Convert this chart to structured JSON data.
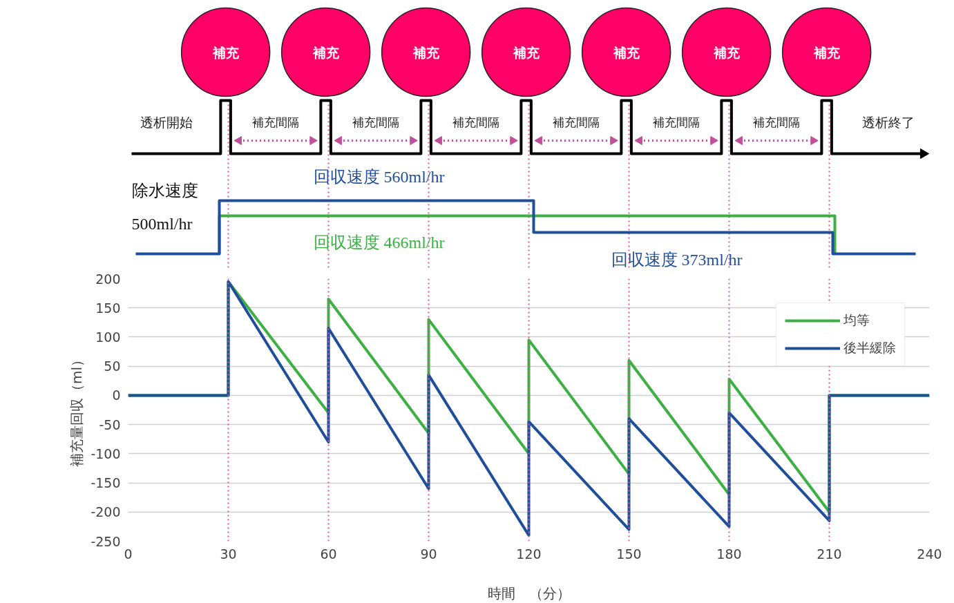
{
  "chart_data": {
    "type": "line",
    "xlabel": "時間　（分）",
    "ylabel": "補充量回収（ml）",
    "x": [
      0,
      30,
      30,
      60,
      60,
      90,
      90,
      120,
      120,
      150,
      150,
      180,
      180,
      210,
      210,
      240
    ],
    "series": [
      {
        "name": "均等",
        "color": "#3cb043",
        "values": [
          0,
          0,
          195,
          -30,
          165,
          -65,
          130,
          -100,
          95,
          -135,
          60,
          -170,
          28,
          -200,
          0,
          0
        ]
      },
      {
        "name": "後半緩除",
        "color": "#1f4e9a",
        "values": [
          0,
          0,
          195,
          -80,
          115,
          -160,
          35,
          -240,
          -45,
          -230,
          -40,
          -225,
          -30,
          -215,
          0,
          0
        ]
      }
    ],
    "xlim": [
      0,
      240
    ],
    "xticks": [
      0,
      30,
      60,
      90,
      120,
      150,
      180,
      210,
      240
    ],
    "ylim": [
      -250,
      200
    ],
    "yticks": [
      -250,
      -200,
      -150,
      -100,
      -50,
      0,
      50,
      100,
      150,
      200
    ],
    "grid": "y",
    "legend": "top right",
    "line_style": "solid",
    "marker": "none",
    "ref_lines": [
      {
        "axis": "x",
        "value": 30,
        "color": "#d9579c",
        "line_style": "dotted"
      },
      {
        "axis": "x",
        "value": 60,
        "color": "#d9579c",
        "line_style": "dotted"
      },
      {
        "axis": "x",
        "value": 90,
        "color": "#d9579c",
        "line_style": "dotted"
      },
      {
        "axis": "x",
        "value": 120,
        "color": "#d9579c",
        "line_style": "dotted"
      },
      {
        "axis": "x",
        "value": 150,
        "color": "#d9579c",
        "line_style": "dotted"
      },
      {
        "axis": "x",
        "value": 180,
        "color": "#d9579c",
        "line_style": "dotted"
      },
      {
        "axis": "x",
        "value": 210,
        "color": "#d9579c",
        "line_style": "dotted"
      }
    ],
    "annotations": [
      "補充",
      "補充",
      "補充",
      "補充",
      "補充",
      "補充",
      "補充",
      "補充間隔",
      "補充間隔",
      "補充間隔",
      "補充間隔",
      "補充間隔",
      "補充間隔",
      "透析開始",
      "透析終了",
      "除水速度",
      "500ml/hr",
      "回収速度 560ml/hr",
      "回収速度 466ml/hr",
      "回収速度  373ml/hr"
    ]
  }
}
